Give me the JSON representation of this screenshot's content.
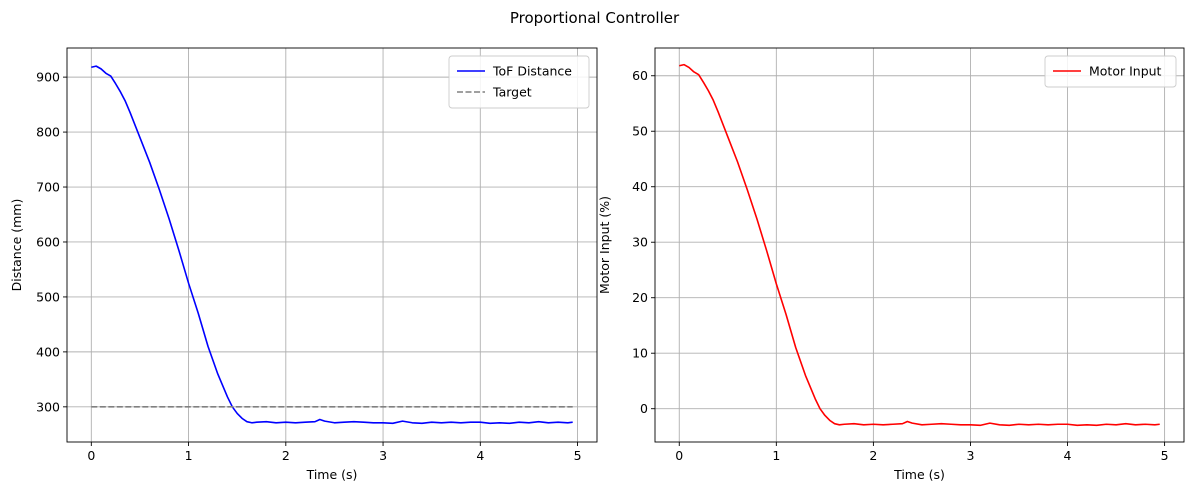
{
  "figure": {
    "title": "Proportional Controller"
  },
  "chart_data": [
    {
      "type": "line",
      "xlabel": "Time (s)",
      "ylabel": "Distance (mm)",
      "xlim": [
        -0.25,
        5.2
      ],
      "ylim": [
        236,
        953
      ],
      "xticks": [
        0,
        1,
        2,
        3,
        4,
        5
      ],
      "yticks": [
        300,
        400,
        500,
        600,
        700,
        800,
        900
      ],
      "grid": true,
      "legend": "top-right",
      "series": [
        {
          "name": "ToF Distance",
          "color": "#0000ff",
          "style": "solid",
          "x": [
            0,
            0.05,
            0.1,
            0.15,
            0.2,
            0.25,
            0.3,
            0.35,
            0.4,
            0.5,
            0.6,
            0.7,
            0.8,
            0.9,
            1.0,
            1.1,
            1.2,
            1.3,
            1.4,
            1.45,
            1.5,
            1.55,
            1.6,
            1.65,
            1.7,
            1.8,
            1.9,
            2.0,
            2.1,
            2.2,
            2.3,
            2.35,
            2.4,
            2.5,
            2.6,
            2.7,
            2.8,
            2.9,
            3.0,
            3.1,
            3.2,
            3.3,
            3.4,
            3.5,
            3.6,
            3.7,
            3.8,
            3.9,
            4.0,
            4.1,
            4.2,
            4.3,
            4.4,
            4.5,
            4.6,
            4.7,
            4.8,
            4.9,
            4.95
          ],
          "y": [
            918,
            920,
            915,
            907,
            902,
            888,
            873,
            856,
            835,
            790,
            745,
            695,
            642,
            585,
            525,
            470,
            410,
            360,
            318,
            300,
            288,
            279,
            273,
            271,
            272,
            273,
            271,
            272,
            271,
            272,
            273,
            277,
            274,
            271,
            272,
            273,
            272,
            271,
            271,
            270,
            274,
            271,
            270,
            272,
            271,
            272,
            271,
            272,
            272,
            270,
            271,
            270,
            272,
            271,
            273,
            271,
            272,
            271,
            272
          ]
        },
        {
          "name": "Target",
          "color": "#808080",
          "style": "dashed",
          "x": [
            0,
            4.95
          ],
          "y": [
            300,
            300
          ]
        }
      ]
    },
    {
      "type": "line",
      "xlabel": "Time (s)",
      "ylabel": "Motor Input (%)",
      "xlim": [
        -0.25,
        5.2
      ],
      "ylim": [
        -6,
        65
      ],
      "xticks": [
        0,
        1,
        2,
        3,
        4,
        5
      ],
      "yticks": [
        0,
        10,
        20,
        30,
        40,
        50,
        60
      ],
      "grid": true,
      "legend": "top-right",
      "series": [
        {
          "name": "Motor Input",
          "color": "#ff0000",
          "style": "solid",
          "x": [
            0,
            0.05,
            0.1,
            0.15,
            0.2,
            0.25,
            0.3,
            0.35,
            0.4,
            0.5,
            0.6,
            0.7,
            0.8,
            0.9,
            1.0,
            1.1,
            1.2,
            1.3,
            1.4,
            1.45,
            1.5,
            1.55,
            1.6,
            1.65,
            1.7,
            1.8,
            1.9,
            2.0,
            2.1,
            2.2,
            2.3,
            2.35,
            2.4,
            2.5,
            2.6,
            2.7,
            2.8,
            2.9,
            3.0,
            3.1,
            3.2,
            3.3,
            3.4,
            3.5,
            3.6,
            3.7,
            3.8,
            3.9,
            4.0,
            4.1,
            4.2,
            4.3,
            4.4,
            4.5,
            4.6,
            4.7,
            4.8,
            4.9,
            4.95
          ],
          "y": [
            61.8,
            62.0,
            61.5,
            60.7,
            60.2,
            58.8,
            57.3,
            55.6,
            53.5,
            49.0,
            44.5,
            39.5,
            34.2,
            28.5,
            22.5,
            17.0,
            11.0,
            6.0,
            1.8,
            0.0,
            -1.2,
            -2.1,
            -2.7,
            -2.9,
            -2.8,
            -2.7,
            -2.9,
            -2.8,
            -2.9,
            -2.8,
            -2.7,
            -2.3,
            -2.6,
            -2.9,
            -2.8,
            -2.7,
            -2.8,
            -2.9,
            -2.9,
            -3.0,
            -2.6,
            -2.9,
            -3.0,
            -2.8,
            -2.9,
            -2.8,
            -2.9,
            -2.8,
            -2.8,
            -3.0,
            -2.9,
            -3.0,
            -2.8,
            -2.9,
            -2.7,
            -2.9,
            -2.8,
            -2.9,
            -2.8
          ]
        }
      ]
    }
  ]
}
